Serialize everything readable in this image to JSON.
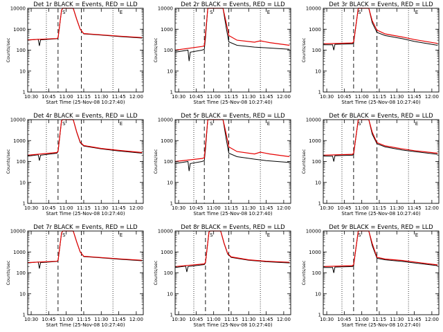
{
  "colors": {
    "events": "#000000",
    "lld": "#e60000",
    "background": "#ffffff"
  },
  "chart_data": {
    "type": "line",
    "yscale": "log",
    "ylim": [
      1,
      10000
    ],
    "ylabel": "Counts/sec",
    "xlabel": "Start Time (25-Nov-08 10:27:40)",
    "xlim": [
      "10:27",
      "12:06"
    ],
    "x_ticks": [
      "10:30",
      "10:45",
      "11:00",
      "11:15",
      "11:30",
      "11:45",
      "12:00"
    ],
    "y_ticks": [
      "1",
      "10",
      "100",
      "1000",
      "10000"
    ],
    "legend_text": "BLACK = Events, RED = LLD",
    "series_names": [
      "Events",
      "LLD"
    ],
    "markers": [
      "S",
      "E"
    ],
    "panels": [
      {
        "title": "Det 1r BLACK = Events, RED = LLD",
        "dotted": [
          "10:43",
          "11:40"
        ],
        "dashed": [
          "10:53",
          "11:13"
        ],
        "s_marker": "10:58",
        "e_marker": "11:47",
        "events": [
          [
            "10:27",
            300
          ],
          [
            "10:36",
            330
          ],
          [
            "10:37",
            160
          ],
          [
            "10:38",
            310
          ],
          [
            "10:52",
            350
          ],
          [
            "10:53",
            380
          ],
          [
            "10:56",
            8000
          ],
          [
            "10:57",
            10000
          ],
          [
            "11:06",
            10000
          ],
          [
            "11:09",
            3000
          ],
          [
            "11:12",
            1000
          ],
          [
            "11:15",
            600
          ],
          [
            "11:30",
            520
          ],
          [
            "11:45",
            450
          ],
          [
            "12:05",
            380
          ]
        ],
        "lld": [
          [
            "10:27",
            310
          ],
          [
            "10:52",
            360
          ],
          [
            "10:53",
            400
          ],
          [
            "10:56",
            8000
          ],
          [
            "10:57",
            10000
          ],
          [
            "11:06",
            10000
          ],
          [
            "11:09",
            3000
          ],
          [
            "11:12",
            1000
          ],
          [
            "11:15",
            620
          ],
          [
            "11:30",
            540
          ],
          [
            "11:45",
            470
          ],
          [
            "12:05",
            400
          ]
        ]
      },
      {
        "title": "Det 2r BLACK = Events, RED = LLD",
        "dotted": [
          "10:43",
          "11:40"
        ],
        "dashed": [
          "10:52",
          "11:13"
        ],
        "s_marker": "10:58",
        "e_marker": "11:47",
        "events": [
          [
            "10:27",
            80
          ],
          [
            "10:38",
            100
          ],
          [
            "10:39",
            30
          ],
          [
            "10:40",
            80
          ],
          [
            "10:50",
            100
          ],
          [
            "10:52",
            110
          ],
          [
            "10:53",
            400
          ],
          [
            "10:55",
            10000
          ],
          [
            "11:08",
            10000
          ],
          [
            "11:11",
            1000
          ],
          [
            "11:13",
            250
          ],
          [
            "11:20",
            170
          ],
          [
            "11:35",
            140
          ],
          [
            "11:45",
            130
          ],
          [
            "12:05",
            110
          ]
        ],
        "lld": [
          [
            "10:27",
            100
          ],
          [
            "10:50",
            150
          ],
          [
            "10:52",
            160
          ],
          [
            "10:53",
            600
          ],
          [
            "10:55",
            10000
          ],
          [
            "11:08",
            10000
          ],
          [
            "11:11",
            1800
          ],
          [
            "11:13",
            500
          ],
          [
            "11:20",
            300
          ],
          [
            "11:35",
            240
          ],
          [
            "11:40",
            280
          ],
          [
            "11:48",
            230
          ],
          [
            "12:05",
            170
          ]
        ]
      },
      {
        "title": "Det 3r BLACK = Events, RED = LLD",
        "dotted": [
          "10:43",
          "11:40"
        ],
        "dashed": [
          "10:53",
          "11:13"
        ],
        "s_marker": "10:58",
        "e_marker": "11:47",
        "events": [
          [
            "10:27",
            180
          ],
          [
            "10:35",
            180
          ],
          [
            "10:36",
            100
          ],
          [
            "10:37",
            190
          ],
          [
            "10:52",
            200
          ],
          [
            "10:53",
            220
          ],
          [
            "10:57",
            10000
          ],
          [
            "11:06",
            10000
          ],
          [
            "11:09",
            2000
          ],
          [
            "11:13",
            700
          ],
          [
            "11:20",
            500
          ],
          [
            "11:35",
            350
          ],
          [
            "11:45",
            260
          ],
          [
            "12:05",
            170
          ]
        ],
        "lld": [
          [
            "10:27",
            200
          ],
          [
            "10:52",
            220
          ],
          [
            "10:53",
            250
          ],
          [
            "10:57",
            10000
          ],
          [
            "11:06",
            10000
          ],
          [
            "11:09",
            2500
          ],
          [
            "11:13",
            900
          ],
          [
            "11:20",
            600
          ],
          [
            "11:35",
            420
          ],
          [
            "11:45",
            320
          ],
          [
            "12:05",
            210
          ]
        ]
      },
      {
        "title": "Det 4r BLACK = Events, RED = LLD",
        "dotted": [
          "10:43",
          "11:40"
        ],
        "dashed": [
          "10:53",
          "11:13"
        ],
        "s_marker": "10:58",
        "e_marker": "11:47",
        "events": [
          [
            "10:27",
            180
          ],
          [
            "10:36",
            210
          ],
          [
            "10:37",
            110
          ],
          [
            "10:38",
            200
          ],
          [
            "10:52",
            250
          ],
          [
            "10:53",
            300
          ],
          [
            "10:56",
            9000
          ],
          [
            "10:57",
            10000
          ],
          [
            "11:06",
            10000
          ],
          [
            "11:09",
            2500
          ],
          [
            "11:12",
            800
          ],
          [
            "11:15",
            550
          ],
          [
            "11:30",
            400
          ],
          [
            "11:45",
            320
          ],
          [
            "12:05",
            250
          ]
        ],
        "lld": [
          [
            "10:27",
            200
          ],
          [
            "10:52",
            270
          ],
          [
            "10:53",
            320
          ],
          [
            "10:56",
            9000
          ],
          [
            "10:57",
            10000
          ],
          [
            "11:06",
            10000
          ],
          [
            "11:09",
            2600
          ],
          [
            "11:12",
            850
          ],
          [
            "11:15",
            580
          ],
          [
            "11:30",
            420
          ],
          [
            "11:45",
            340
          ],
          [
            "12:05",
            270
          ]
        ]
      },
      {
        "title": "Det 5r BLACK = Events, RED = LLD",
        "dotted": [
          "10:43",
          "11:40"
        ],
        "dashed": [
          "10:52",
          "11:13"
        ],
        "s_marker": "10:58",
        "e_marker": "11:47",
        "events": [
          [
            "10:27",
            80
          ],
          [
            "10:38",
            100
          ],
          [
            "10:39",
            35
          ],
          [
            "10:40",
            80
          ],
          [
            "10:50",
            100
          ],
          [
            "10:52",
            110
          ],
          [
            "10:53",
            400
          ],
          [
            "10:55",
            10000
          ],
          [
            "11:08",
            10000
          ],
          [
            "11:11",
            1000
          ],
          [
            "11:13",
            250
          ],
          [
            "11:20",
            170
          ],
          [
            "11:35",
            130
          ],
          [
            "11:45",
            110
          ],
          [
            "12:05",
            90
          ]
        ],
        "lld": [
          [
            "10:27",
            100
          ],
          [
            "10:50",
            140
          ],
          [
            "10:52",
            150
          ],
          [
            "10:53",
            600
          ],
          [
            "10:55",
            10000
          ],
          [
            "11:08",
            10000
          ],
          [
            "11:11",
            1800
          ],
          [
            "11:13",
            500
          ],
          [
            "11:20",
            300
          ],
          [
            "11:35",
            230
          ],
          [
            "11:40",
            280
          ],
          [
            "11:48",
            230
          ],
          [
            "12:05",
            170
          ]
        ]
      },
      {
        "title": "Det 6r BLACK = Events, RED = LLD",
        "dotted": [
          "10:43",
          "11:40"
        ],
        "dashed": [
          "10:53",
          "11:13"
        ],
        "s_marker": "10:58",
        "e_marker": "11:47",
        "events": [
          [
            "10:27",
            180
          ],
          [
            "10:35",
            180
          ],
          [
            "10:36",
            100
          ],
          [
            "10:37",
            190
          ],
          [
            "10:52",
            200
          ],
          [
            "10:53",
            220
          ],
          [
            "10:57",
            10000
          ],
          [
            "11:06",
            10000
          ],
          [
            "11:09",
            2000
          ],
          [
            "11:13",
            700
          ],
          [
            "11:20",
            500
          ],
          [
            "11:35",
            350
          ],
          [
            "11:45",
            300
          ],
          [
            "12:05",
            220
          ]
        ],
        "lld": [
          [
            "10:27",
            200
          ],
          [
            "10:52",
            220
          ],
          [
            "10:53",
            250
          ],
          [
            "10:57",
            10000
          ],
          [
            "11:06",
            10000
          ],
          [
            "11:09",
            2500
          ],
          [
            "11:13",
            800
          ],
          [
            "11:20",
            560
          ],
          [
            "11:35",
            400
          ],
          [
            "11:45",
            330
          ],
          [
            "12:05",
            250
          ]
        ]
      },
      {
        "title": "Det 7r BLACK = Events, RED = LLD",
        "dotted": [
          "10:43",
          "11:40"
        ],
        "dashed": [
          "10:53",
          "11:13"
        ],
        "s_marker": "10:58",
        "e_marker": "11:47",
        "events": [
          [
            "10:27",
            300
          ],
          [
            "10:36",
            330
          ],
          [
            "10:37",
            160
          ],
          [
            "10:38",
            310
          ],
          [
            "10:52",
            350
          ],
          [
            "10:53",
            380
          ],
          [
            "10:56",
            8000
          ],
          [
            "10:57",
            10000
          ],
          [
            "11:06",
            10000
          ],
          [
            "11:09",
            3000
          ],
          [
            "11:12",
            1000
          ],
          [
            "11:15",
            600
          ],
          [
            "11:30",
            520
          ],
          [
            "11:45",
            450
          ],
          [
            "12:05",
            380
          ]
        ],
        "lld": [
          [
            "10:27",
            310
          ],
          [
            "10:52",
            360
          ],
          [
            "10:53",
            400
          ],
          [
            "10:56",
            8000
          ],
          [
            "10:57",
            10000
          ],
          [
            "11:06",
            10000
          ],
          [
            "11:09",
            3000
          ],
          [
            "11:12",
            1000
          ],
          [
            "11:15",
            620
          ],
          [
            "11:30",
            540
          ],
          [
            "11:45",
            470
          ],
          [
            "12:05",
            400
          ]
        ]
      },
      {
        "title": "Det 8r BLACK = Events, RED = LLD",
        "dotted": [
          "10:43",
          "11:40"
        ],
        "dashed": [
          "10:53",
          "11:13"
        ],
        "s_marker": "10:58",
        "e_marker": "11:47",
        "events": [
          [
            "10:27",
            180
          ],
          [
            "10:36",
            210
          ],
          [
            "10:37",
            110
          ],
          [
            "10:38",
            200
          ],
          [
            "10:52",
            250
          ],
          [
            "10:53",
            300
          ],
          [
            "10:56",
            9000
          ],
          [
            "10:57",
            10000
          ],
          [
            "11:06",
            10000
          ],
          [
            "11:09",
            2500
          ],
          [
            "11:12",
            800
          ],
          [
            "11:15",
            550
          ],
          [
            "11:30",
            400
          ],
          [
            "11:45",
            340
          ],
          [
            "12:05",
            300
          ]
        ],
        "lld": [
          [
            "10:27",
            200
          ],
          [
            "10:52",
            270
          ],
          [
            "10:53",
            320
          ],
          [
            "10:56",
            9000
          ],
          [
            "10:57",
            10000
          ],
          [
            "11:06",
            10000
          ],
          [
            "11:09",
            2600
          ],
          [
            "11:12",
            850
          ],
          [
            "11:15",
            580
          ],
          [
            "11:30",
            420
          ],
          [
            "11:45",
            360
          ],
          [
            "12:05",
            320
          ]
        ]
      },
      {
        "title": "Det 9r BLACK = Events, RED = LLD",
        "dotted": [
          "10:43",
          "11:40"
        ],
        "dashed": [
          "10:53",
          "11:13"
        ],
        "s_marker": "10:58",
        "e_marker": "11:47",
        "events": [
          [
            "10:27",
            180
          ],
          [
            "10:35",
            180
          ],
          [
            "10:36",
            100
          ],
          [
            "10:37",
            190
          ],
          [
            "10:52",
            200
          ],
          [
            "10:53",
            220
          ],
          [
            "10:57",
            10000
          ],
          [
            "11:06",
            10000
          ],
          [
            "11:09",
            2000
          ],
          [
            "11:13",
            500
          ],
          [
            "11:20",
            420
          ],
          [
            "11:35",
            350
          ],
          [
            "11:45",
            300
          ],
          [
            "12:05",
            220
          ]
        ],
        "lld": [
          [
            "10:27",
            200
          ],
          [
            "10:52",
            220
          ],
          [
            "10:53",
            250
          ],
          [
            "10:57",
            10000
          ],
          [
            "11:06",
            10000
          ],
          [
            "11:09",
            2500
          ],
          [
            "11:13",
            560
          ],
          [
            "11:20",
            460
          ],
          [
            "11:35",
            390
          ],
          [
            "11:45",
            330
          ],
          [
            "12:05",
            240
          ]
        ]
      }
    ]
  }
}
